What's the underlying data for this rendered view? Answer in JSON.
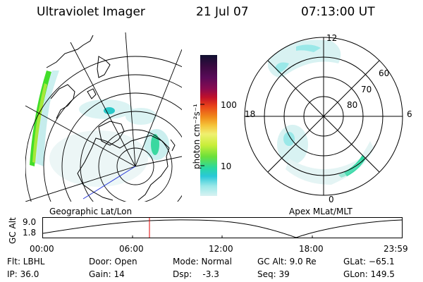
{
  "header": {
    "instrument": "Ultraviolet Imager",
    "date": "21 Jul 07",
    "time": "07:13:00 UT"
  },
  "colorbar": {
    "unit_label": "photon cm⁻²s⁻¹",
    "ticks": [
      "100",
      "10"
    ],
    "colors": [
      "#101030",
      "#3a0a40",
      "#5a0a58",
      "#8a0a50",
      "#c0102a",
      "#e8401a",
      "#f08a1a",
      "#f5c43a",
      "#f0f070",
      "#c8ee3a",
      "#6ce03a",
      "#2ad8a0",
      "#2ac8d8",
      "#9ae8e8",
      "#d8f2f2"
    ]
  },
  "geo_panel": {
    "label": "Geographic Lat/Lon"
  },
  "apex_panel": {
    "label": "Apex MLat/MLT",
    "mlt_labels": {
      "top": "12",
      "bottom": "0",
      "left": "18",
      "right": "6"
    },
    "lat_labels": [
      "60",
      "70",
      "80"
    ]
  },
  "altitude_strip": {
    "y_label": "GC Alt",
    "y_ticks": [
      "9.0",
      "1.8"
    ],
    "x_ticks": [
      "00:00",
      "06:00",
      "12:00",
      "18:00",
      "23:59"
    ],
    "current_time_color": "#e00000"
  },
  "info": {
    "filter": "Flt: LBHL",
    "ip": "IP: 36.0",
    "door": "Door: Open",
    "gain": "Gain: 14",
    "mode": "Mode: Normal",
    "dsp": "Dsp:    -3.3",
    "gc_alt": "GC Alt: 9.0 Re",
    "seq": "Seq: 39",
    "glat": "GLat: −65.1",
    "glon": "GLon: 149.5"
  }
}
